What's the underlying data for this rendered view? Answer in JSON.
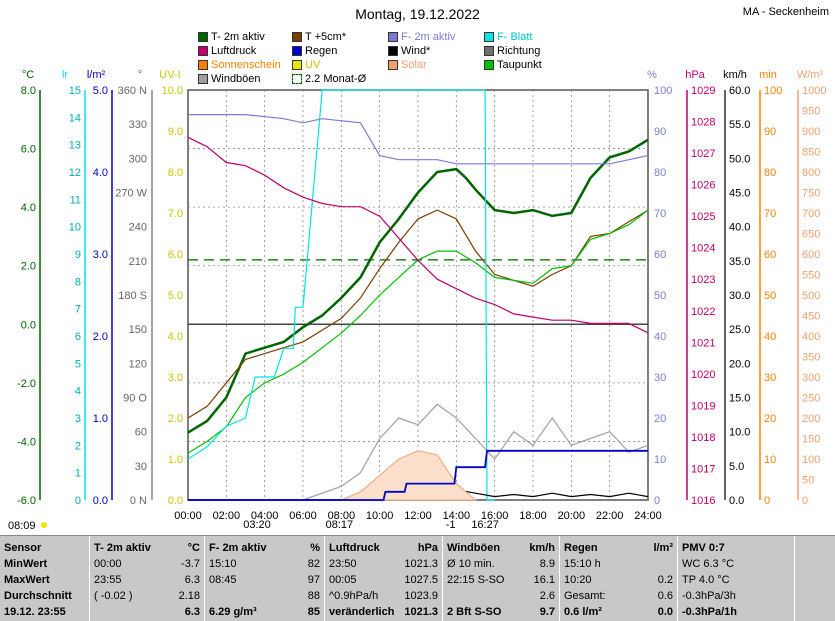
{
  "title": "Montag, 19.12.2022",
  "station": "MA - Seckenheim",
  "colors": {
    "t2m": "#006400",
    "t5cm": "#7b3f00",
    "fblatt": "#00e5e5",
    "f2m": "#7b7bd6",
    "luftdruck": "#c0006b",
    "regen": "#0000c8",
    "wind": "#000000",
    "richtung": "#6e6e6e",
    "sonnenschein": "#ff8000",
    "uv": "#e8e800",
    "solar": "#f0a070",
    "taupunkt": "#00c000",
    "windboeen": "#a0a0a0",
    "monat": "#006400"
  },
  "legend": [
    {
      "label": "T- 2m aktiv",
      "color": "#006400",
      "key": "t2m"
    },
    {
      "label": "T +5cm*",
      "color": "#7b3f00",
      "key": "t5cm"
    },
    {
      "label": "F- 2m aktiv",
      "color": "#7b7bd6",
      "key": "f2m"
    },
    {
      "label": "F- Blatt",
      "color": "#00e5e5",
      "key": "fblatt"
    },
    {
      "label": "Luftdruck",
      "color": "#c0006b",
      "key": "luftdruck"
    },
    {
      "label": "Regen",
      "color": "#0000c8",
      "key": "regen"
    },
    {
      "label": "Wind*",
      "color": "#000000",
      "key": "wind"
    },
    {
      "label": "Richtung",
      "color": "#6e6e6e",
      "key": "richtung"
    },
    {
      "label": "Sonnenschein",
      "color": "#ff8000",
      "key": "sonnenschein"
    },
    {
      "label": "UV",
      "color": "#e8e800",
      "key": "uv"
    },
    {
      "label": "Solar",
      "color": "#f0a070",
      "key": "solar"
    },
    {
      "label": "Taupunkt",
      "color": "#00c000",
      "key": "taupunkt"
    },
    {
      "label": "Windböen",
      "color": "#a0a0a0",
      "key": "windboeen"
    },
    {
      "label": "2.2 Monat-Ø",
      "color": "#006400",
      "key": "monat"
    }
  ],
  "axis_units": {
    "c": "°C",
    "lr": "lr",
    "lm2": "l/m²",
    "deg": "°",
    "uvi": "UV-I",
    "pct": "%",
    "hpa": "hPa",
    "kmh": "km/h",
    "min": "min",
    "wm2": "W/m²"
  },
  "chart_data": {
    "type": "line",
    "title": "Montag, 19.12.2022",
    "xlabel": "",
    "ylabel": "°C",
    "xlim": [
      0,
      24
    ],
    "x_ticks": [
      "00:00",
      "02:00",
      "04:00",
      "06:00",
      "08:00",
      "10:00",
      "12:00",
      "14:00",
      "16:00",
      "18:00",
      "20:00",
      "22:00",
      "24:00"
    ],
    "axes": {
      "temp_c": {
        "range": [
          -6,
          8
        ],
        "ticks": [
          "8.0",
          "6.0",
          "4.0",
          "2.0",
          "0.0",
          "-2.0",
          "-4.0",
          "-6.0"
        ]
      },
      "lr": {
        "range": [
          0,
          15
        ],
        "ticks": [
          "15",
          "14",
          "13",
          "12",
          "11",
          "10",
          "9",
          "8",
          "7",
          "6",
          "5",
          "4",
          "3",
          "2",
          "1",
          "0"
        ]
      },
      "rain_lm2": {
        "range": [
          0,
          5
        ],
        "ticks": [
          "5.0",
          "4.0",
          "3.0",
          "2.0",
          "1.0",
          "0.0"
        ]
      },
      "direction": {
        "range": [
          0,
          360
        ],
        "ticks": [
          "360 N",
          "330",
          "300",
          "270 W",
          "240",
          "210",
          "180 S",
          "150",
          "120",
          "90 O",
          "60",
          "30",
          "0 N"
        ]
      },
      "uvi": {
        "range": [
          0,
          10
        ],
        "ticks": [
          "10.0",
          "9.0",
          "8.0",
          "7.0",
          "6.0",
          "5.0",
          "4.0",
          "3.0",
          "2.0",
          "1.0",
          "0.0"
        ]
      },
      "humidity_pct": {
        "range": [
          0,
          100
        ],
        "ticks": [
          "100",
          "90",
          "80",
          "70",
          "60",
          "50",
          "40",
          "30",
          "20",
          "10",
          "0"
        ]
      },
      "pressure_hpa": {
        "range": [
          1016,
          1029
        ],
        "ticks": [
          "1029",
          "1028",
          "1027",
          "1026",
          "1025",
          "1024",
          "1023",
          "1022",
          "1021",
          "1020",
          "1019",
          "1018",
          "1017",
          "1016"
        ]
      },
      "speed_kmh": {
        "range": [
          0,
          60
        ],
        "ticks": [
          "60.0",
          "55.0",
          "50.0",
          "45.0",
          "40.0",
          "35.0",
          "30.0",
          "25.0",
          "20.0",
          "15.0",
          "10.0",
          "5.0",
          "0.0"
        ]
      },
      "sun_min": {
        "range": [
          0,
          100
        ],
        "ticks": [
          "100",
          "90",
          "80",
          "70",
          "60",
          "50",
          "40",
          "30",
          "20",
          "10",
          "0"
        ]
      },
      "solar_wm2": {
        "range": [
          0,
          1000
        ],
        "ticks": [
          "1000",
          "950",
          "900",
          "850",
          "800",
          "750",
          "700",
          "650",
          "600",
          "550",
          "500",
          "450",
          "400",
          "350",
          "300",
          "250",
          "200",
          "150",
          "100",
          "50",
          "0"
        ]
      }
    },
    "reference_lines": [
      {
        "name": "2.2 Monat-Ø",
        "axis": "temp_c",
        "y": 2.2
      },
      {
        "axis": "temp_c",
        "y": 0
      }
    ],
    "series": [
      {
        "name": "T- 2m aktiv",
        "axis": "temp_c",
        "x": [
          0,
          1,
          2,
          3,
          4,
          5,
          6,
          7,
          8,
          9,
          10,
          11,
          12,
          13,
          14,
          14.5,
          15,
          16,
          17,
          18,
          19,
          20,
          21,
          22,
          23,
          24
        ],
        "y": [
          -3.7,
          -3.3,
          -2.5,
          -1.0,
          -0.8,
          -0.6,
          -0.1,
          0.3,
          0.9,
          1.6,
          2.8,
          3.6,
          4.5,
          5.2,
          5.3,
          5.0,
          4.6,
          3.9,
          3.8,
          3.9,
          3.7,
          3.8,
          5.0,
          5.7,
          5.9,
          6.3
        ]
      },
      {
        "name": "T +5cm*",
        "axis": "temp_c",
        "x": [
          0,
          1,
          2,
          3,
          4,
          5,
          6,
          7,
          8,
          9,
          10,
          11,
          12,
          13,
          14,
          15,
          16,
          17,
          18,
          19,
          20,
          21,
          22,
          23,
          24
        ],
        "y": [
          -3.2,
          -2.8,
          -2.0,
          -1.2,
          -1.0,
          -0.8,
          -0.6,
          -0.2,
          0.2,
          0.9,
          1.9,
          2.8,
          3.6,
          3.9,
          3.6,
          2.5,
          1.7,
          1.5,
          1.3,
          1.7,
          2.0,
          3.0,
          3.1,
          3.5,
          3.9
        ]
      },
      {
        "name": "Taupunkt",
        "axis": "temp_c",
        "x": [
          0,
          1,
          2,
          3,
          4,
          5,
          6,
          7,
          8,
          9,
          10,
          11,
          12,
          13,
          14,
          15,
          16,
          17,
          18,
          19,
          20,
          21,
          22,
          23,
          24
        ],
        "y": [
          -4.4,
          -4.0,
          -3.5,
          -2.5,
          -2.0,
          -1.7,
          -1.3,
          -0.8,
          -0.3,
          0.3,
          1.0,
          1.6,
          2.2,
          2.5,
          2.5,
          2.1,
          1.6,
          1.5,
          1.4,
          1.9,
          2.0,
          2.9,
          3.1,
          3.4,
          3.9
        ]
      },
      {
        "name": "F- 2m aktiv",
        "axis": "humidity_pct",
        "x": [
          0,
          3,
          5,
          6,
          7,
          9,
          10,
          11,
          12,
          13,
          14,
          15,
          16,
          17,
          18,
          19,
          20,
          21,
          22,
          23,
          24
        ],
        "y": [
          94,
          94,
          93,
          92,
          93,
          92,
          84,
          83,
          83,
          83,
          82,
          82,
          82,
          82,
          82,
          82,
          82,
          82,
          82,
          83,
          84
        ]
      },
      {
        "name": "F- Blatt",
        "axis": "humidity_pct",
        "x": [
          0,
          1,
          2,
          3,
          3.5,
          4.5,
          5.0,
          5.5,
          5.6,
          6.0,
          7.0,
          7.2,
          8.0,
          10.6,
          10.8,
          14.5,
          14.9,
          15.5,
          15.6,
          16
        ],
        "y": [
          10,
          13,
          18,
          20,
          30,
          30,
          37,
          37,
          47,
          47,
          100,
          100,
          100,
          100,
          100,
          100,
          100,
          100,
          0,
          0
        ]
      },
      {
        "name": "Luftdruck",
        "axis": "pressure_hpa",
        "x": [
          0,
          1,
          2,
          3,
          4,
          5,
          6,
          7,
          8,
          9,
          10,
          11,
          12,
          13,
          14,
          15,
          16,
          17,
          18,
          19,
          20,
          21,
          22,
          23,
          24
        ],
        "y": [
          1027.5,
          1027.2,
          1026.7,
          1026.6,
          1026.3,
          1025.9,
          1025.6,
          1025.4,
          1025.3,
          1025.3,
          1025.0,
          1024.3,
          1023.6,
          1023.0,
          1022.7,
          1022.4,
          1022.2,
          1021.9,
          1021.8,
          1021.7,
          1021.7,
          1021.6,
          1021.6,
          1021.6,
          1021.3
        ]
      },
      {
        "name": "Windböen",
        "axis": "speed_kmh",
        "x": [
          0,
          6,
          8,
          9,
          10,
          11,
          12,
          13,
          14,
          15,
          16,
          17,
          18,
          19,
          20,
          21,
          22,
          23,
          24
        ],
        "y": [
          0,
          0,
          2,
          4,
          9,
          12,
          11,
          14,
          12,
          9,
          6,
          10,
          8,
          12,
          8,
          9,
          10,
          7,
          8
        ]
      },
      {
        "name": "Wind*",
        "axis": "speed_kmh",
        "x": [
          0,
          8,
          10,
          11,
          12,
          13,
          14,
          15,
          16,
          17,
          18,
          19,
          20,
          21,
          22,
          23,
          24
        ],
        "y": [
          0,
          0,
          0.5,
          1,
          2,
          2,
          1.5,
          1,
          0.5,
          0.8,
          0.5,
          1,
          0.5,
          0.8,
          0.5,
          1,
          0.5
        ]
      },
      {
        "name": "Solar",
        "axis": "solar_wm2",
        "x": [
          8,
          9,
          10,
          11,
          12,
          13,
          14,
          15
        ],
        "y": [
          0,
          20,
          60,
          100,
          120,
          110,
          40,
          0
        ]
      },
      {
        "name": "Regen",
        "axis": "rain_lm2",
        "x": [
          0,
          10.2,
          10.3,
          11.3,
          11.4,
          13.9,
          14.0,
          15.5,
          15.6,
          24
        ],
        "y": [
          0,
          0,
          0.1,
          0.1,
          0.2,
          0.2,
          0.4,
          0.4,
          0.6,
          0.6
        ]
      }
    ]
  },
  "footer": {
    "sunrise": "08:09",
    "sunset": "16:27",
    "t1": "03:20",
    "t2": "08:17",
    "t3": "-1"
  },
  "table": {
    "cols": [
      {
        "hdr": [
          "Sensor"
        ],
        "rows": [
          "MinWert",
          "MaxWert",
          "Durchschnitt"
        ],
        "last": "19.12. 23:55"
      },
      {
        "hdr": [
          "T- 2m aktiv",
          "°C"
        ],
        "rows": [
          [
            "00:00",
            "-3.7"
          ],
          [
            "23:55",
            "6.3"
          ],
          [
            "( -0.02 )",
            "2.18"
          ]
        ],
        "last": [
          "",
          "6.3"
        ]
      },
      {
        "hdr": [
          "F- 2m aktiv",
          "%"
        ],
        "rows": [
          [
            "15:10",
            "82"
          ],
          [
            "08:45",
            "97"
          ],
          [
            "",
            "88"
          ]
        ],
        "last": [
          "6.29 g/m³",
          "85"
        ]
      },
      {
        "hdr": [
          "Luftdruck",
          "hPa"
        ],
        "rows": [
          [
            "23:50",
            "1021.3"
          ],
          [
            "00:05",
            "1027.5"
          ],
          [
            "^0.9hPa/h",
            "1023.9"
          ]
        ],
        "last": [
          "veränderlich",
          "1021.3"
        ]
      },
      {
        "hdr": [
          "Windböen",
          "km/h"
        ],
        "rows": [
          [
            "Ø 10 min.",
            "8.9"
          ],
          [
            "22:15    S-SO",
            "16.1"
          ],
          [
            "",
            "2.6"
          ]
        ],
        "last": [
          "2 Bft S-SO",
          "9.7"
        ]
      },
      {
        "hdr": [
          "Regen",
          "l/m²"
        ],
        "rows": [
          [
            "15:10 h",
            ""
          ],
          [
            "10:20",
            "0.2"
          ],
          [
            "Gesamt:",
            "0.6"
          ]
        ],
        "last": [
          "0.6 l/m²",
          "0.0"
        ]
      },
      {
        "hdr": [
          "PMV 0:7"
        ],
        "rows": [
          "WC 6.3 °C",
          "TP 4.0 °C",
          "-0.3hPa/3h"
        ],
        "last": "-0.3hPa/1h"
      }
    ]
  }
}
